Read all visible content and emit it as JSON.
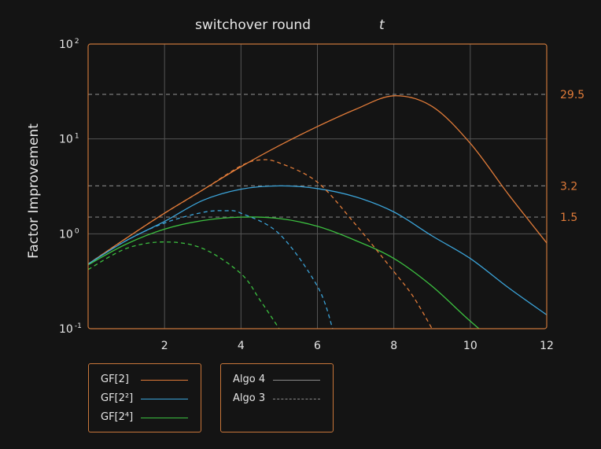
{
  "chart_data": {
    "type": "line",
    "title": "switchover round",
    "title_var": "t",
    "ylabel": "Factor Improvement",
    "xlabel": "",
    "xlim": [
      0,
      12
    ],
    "ylim": [
      0.1,
      100
    ],
    "yscale": "log",
    "x_ticks": [
      2,
      4,
      6,
      8,
      10,
      12
    ],
    "y_ticks": [
      {
        "base": "10",
        "exp": "-1"
      },
      {
        "base": "10",
        "exp": "0"
      },
      {
        "base": "10",
        "exp": "1"
      },
      {
        "base": "10",
        "exp": "2"
      }
    ],
    "grid": true,
    "reference_lines": [
      {
        "value": 29.5,
        "label": "29.5"
      },
      {
        "value": 3.2,
        "label": "3.2"
      },
      {
        "value": 1.5,
        "label": "1.5"
      }
    ],
    "series": [
      {
        "name": "GF[2]",
        "algo": "Algo 4",
        "color": "#e07b39",
        "x": [
          0,
          1,
          2,
          3,
          4,
          5,
          6,
          7,
          8,
          9,
          10,
          11,
          12
        ],
        "y": [
          0.48,
          0.9,
          1.65,
          2.9,
          5.1,
          8.5,
          13.5,
          20.5,
          28.5,
          22,
          9,
          2.6,
          0.8
        ]
      },
      {
        "name": "GF[2²]",
        "algo": "Algo 4",
        "color": "#3ba3d8",
        "x": [
          0,
          1,
          2,
          3,
          4,
          5,
          6,
          7,
          8,
          9,
          10,
          11,
          12
        ],
        "y": [
          0.48,
          0.85,
          1.35,
          2.25,
          2.95,
          3.2,
          3.0,
          2.45,
          1.7,
          0.95,
          0.55,
          0.27,
          0.14
        ]
      },
      {
        "name": "GF[2⁴]",
        "algo": "Algo 4",
        "color": "#3cc040",
        "x": [
          0,
          1,
          2,
          3,
          4,
          5,
          6,
          7,
          8,
          9,
          10,
          11
        ],
        "y": [
          0.47,
          0.78,
          1.12,
          1.38,
          1.5,
          1.45,
          1.2,
          0.85,
          0.55,
          0.28,
          0.12,
          0.055
        ]
      },
      {
        "name": "GF[2]",
        "algo": "Algo 3",
        "color": "#e07b39",
        "x": [
          0,
          1,
          2,
          3,
          4,
          4.5,
          5,
          6,
          7,
          8,
          8.5,
          9
        ],
        "y": [
          0.48,
          0.9,
          1.65,
          2.9,
          5.2,
          6.0,
          5.6,
          3.5,
          1.25,
          0.4,
          0.22,
          0.1
        ]
      },
      {
        "name": "GF[2²]",
        "algo": "Algo 3",
        "color": "#3ba3d8",
        "x": [
          0,
          1,
          2,
          3,
          3.6,
          4,
          5,
          6,
          6.4
        ],
        "y": [
          0.48,
          0.85,
          1.3,
          1.68,
          1.75,
          1.65,
          1.0,
          0.28,
          0.1
        ]
      },
      {
        "name": "GF[2⁴]",
        "algo": "Algo 3",
        "color": "#3cc040",
        "x": [
          0,
          1,
          2,
          3,
          4,
          4.5,
          5
        ],
        "y": [
          0.42,
          0.7,
          0.82,
          0.7,
          0.38,
          0.2,
          0.1
        ]
      }
    ]
  },
  "legend_series": {
    "items": [
      {
        "label": "GF[2]",
        "color": "#e07b39"
      },
      {
        "label": "GF[2²]",
        "color": "#3ba3d8"
      },
      {
        "label": "GF[2⁴]",
        "color": "#3cc040"
      }
    ]
  },
  "legend_algo": {
    "items": [
      {
        "label": "Algo 4",
        "style": "solid"
      },
      {
        "label": "Algo 3",
        "style": "dashed"
      }
    ]
  },
  "colors": {
    "axis_frame": "#c8763a",
    "grid": "#555555",
    "reference_line": "#7a7a7a",
    "reference_label": "#e07b39",
    "text": "#e6e6e6"
  }
}
